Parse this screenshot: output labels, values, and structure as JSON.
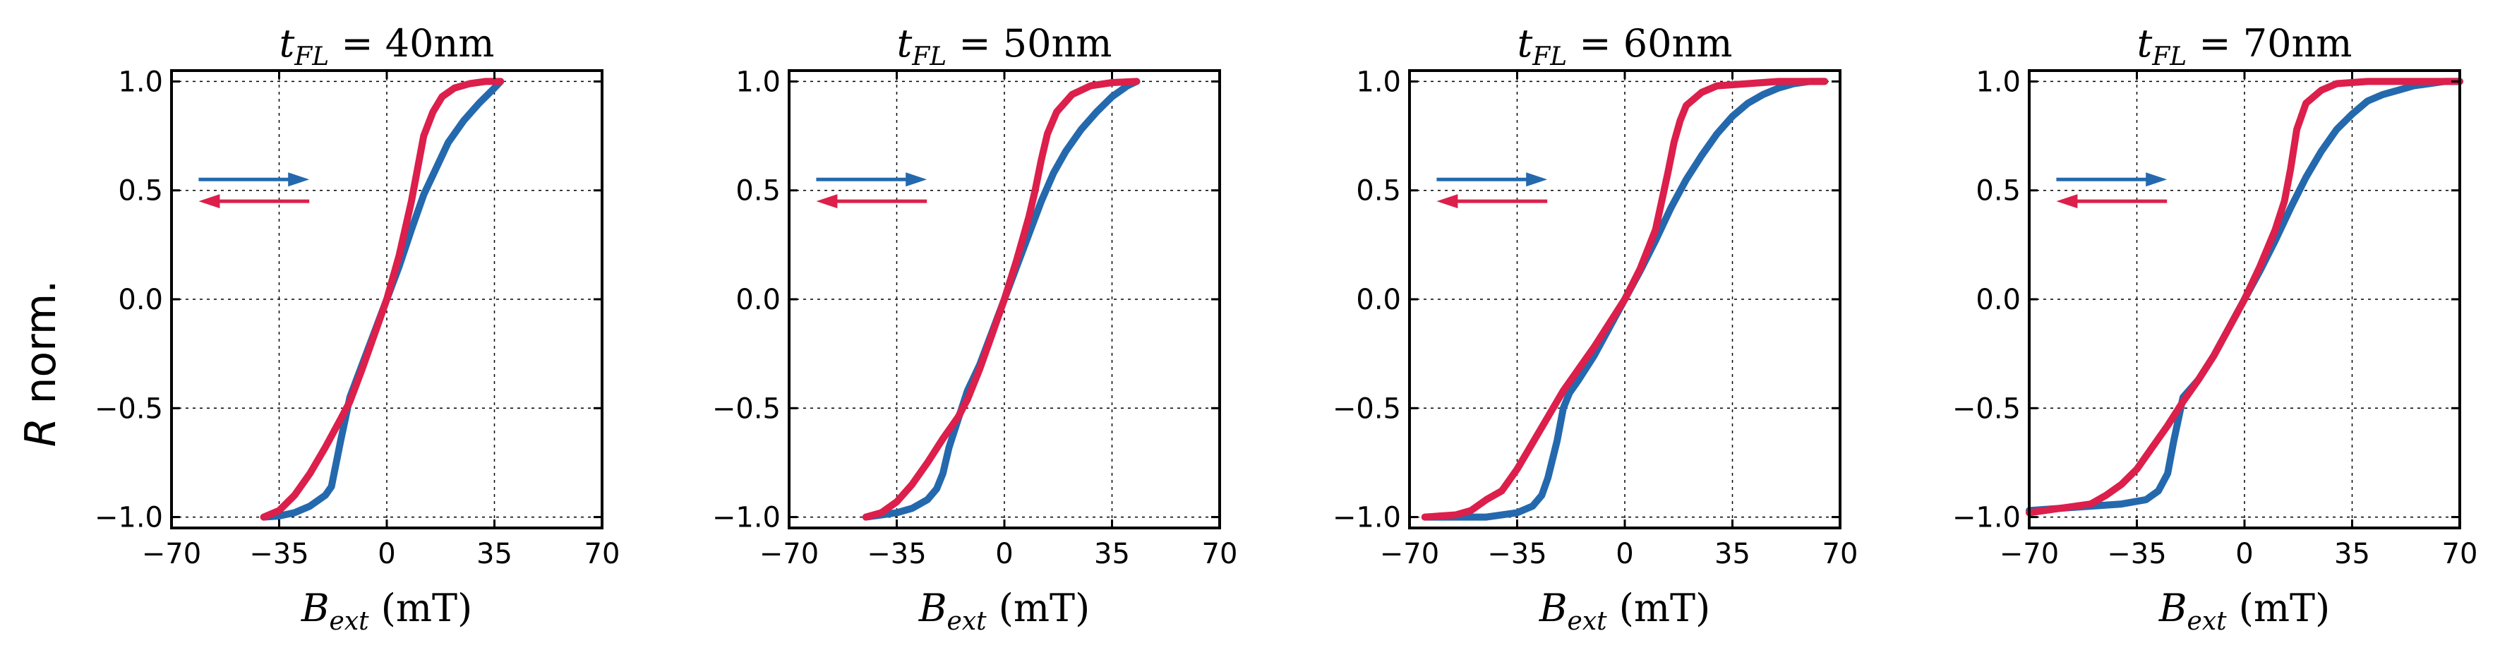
{
  "figure": {
    "ylabel": "R",
    "ylabel_suffix": " norm."
  },
  "chart_data": [
    {
      "type": "line",
      "title_var": "t",
      "title_sub": "FL",
      "title_value": "= 40nm",
      "xlabel_var": "B",
      "xlabel_sub": "ext",
      "xlabel_unit": " (mT)",
      "xlim": [
        -70,
        70
      ],
      "ylim": [
        -1.05,
        1.05
      ],
      "xticks": [
        -70,
        -35,
        0,
        35,
        70
      ],
      "xtick_labels": [
        "−70",
        "−35",
        "0",
        "35",
        "70"
      ],
      "yticks": [
        -1.0,
        -0.5,
        0.0,
        0.5,
        1.0
      ],
      "ytick_labels": [
        "−1.0",
        "−0.5",
        "0.0",
        "0.5",
        "1.0"
      ],
      "grid": true,
      "series": [
        {
          "name": "sweep up",
          "color": "#2469ad",
          "x": [
            -40,
            -35,
            -30,
            -25,
            -20,
            -18,
            -15,
            -12,
            -8,
            -4,
            0,
            4,
            8,
            12,
            16,
            20,
            25,
            30,
            35,
            37
          ],
          "y": [
            -1.0,
            -0.995,
            -0.98,
            -0.95,
            -0.9,
            -0.86,
            -0.65,
            -0.45,
            -0.3,
            -0.15,
            0.0,
            0.15,
            0.32,
            0.48,
            0.6,
            0.72,
            0.82,
            0.9,
            0.97,
            1.0
          ]
        },
        {
          "name": "sweep down",
          "color": "#dc1f4b",
          "x": [
            -40,
            -35,
            -30,
            -25,
            -20,
            -15,
            -12,
            -8,
            -4,
            0,
            4,
            8,
            10,
            12,
            15,
            18,
            22,
            27,
            32,
            37
          ],
          "y": [
            -1.0,
            -0.97,
            -0.9,
            -0.8,
            -0.68,
            -0.55,
            -0.47,
            -0.32,
            -0.16,
            0.0,
            0.2,
            0.45,
            0.6,
            0.75,
            0.86,
            0.93,
            0.97,
            0.99,
            1.0,
            1.0
          ]
        }
      ],
      "arrows": [
        {
          "direction": "right",
          "color": "#2469ad"
        },
        {
          "direction": "left",
          "color": "#dc1f4b"
        }
      ]
    },
    {
      "type": "line",
      "title_var": "t",
      "title_sub": "FL",
      "title_value": "= 50nm",
      "xlabel_var": "B",
      "xlabel_sub": "ext",
      "xlabel_unit": " (mT)",
      "xlim": [
        -70,
        70
      ],
      "ylim": [
        -1.05,
        1.05
      ],
      "xticks": [
        -70,
        -35,
        0,
        35,
        70
      ],
      "xtick_labels": [
        "−70",
        "−35",
        "0",
        "35",
        "70"
      ],
      "yticks": [
        -1.0,
        -0.5,
        0.0,
        0.5,
        1.0
      ],
      "ytick_labels": [
        "−1.0",
        "−0.5",
        "0.0",
        "0.5",
        "1.0"
      ],
      "grid": true,
      "series": [
        {
          "name": "sweep up",
          "color": "#2469ad",
          "x": [
            -45,
            -40,
            -35,
            -30,
            -25,
            -22,
            -20,
            -18,
            -15,
            -12,
            -8,
            -4,
            0,
            4,
            8,
            12,
            16,
            20,
            25,
            30,
            35,
            40,
            43
          ],
          "y": [
            -1.0,
            -0.99,
            -0.98,
            -0.96,
            -0.92,
            -0.87,
            -0.8,
            -0.68,
            -0.55,
            -0.42,
            -0.3,
            -0.15,
            0.0,
            0.15,
            0.3,
            0.45,
            0.58,
            0.68,
            0.78,
            0.86,
            0.93,
            0.98,
            1.0
          ]
        },
        {
          "name": "sweep down",
          "color": "#dc1f4b",
          "x": [
            -45,
            -40,
            -35,
            -30,
            -25,
            -20,
            -15,
            -12,
            -8,
            -4,
            0,
            4,
            8,
            10,
            12,
            14,
            17,
            22,
            28,
            35,
            43
          ],
          "y": [
            -1.0,
            -0.98,
            -0.93,
            -0.85,
            -0.75,
            -0.64,
            -0.54,
            -0.46,
            -0.32,
            -0.16,
            0.0,
            0.18,
            0.38,
            0.5,
            0.64,
            0.76,
            0.86,
            0.94,
            0.98,
            0.995,
            1.0
          ]
        }
      ],
      "arrows": [
        {
          "direction": "right",
          "color": "#2469ad"
        },
        {
          "direction": "left",
          "color": "#dc1f4b"
        }
      ]
    },
    {
      "type": "line",
      "title_var": "t",
      "title_sub": "FL",
      "title_value": "= 60nm",
      "xlabel_var": "B",
      "xlabel_sub": "ext",
      "xlabel_unit": " (mT)",
      "xlim": [
        -70,
        70
      ],
      "ylim": [
        -1.05,
        1.05
      ],
      "xticks": [
        -70,
        -35,
        0,
        35,
        70
      ],
      "xtick_labels": [
        "−70",
        "−35",
        "0",
        "35",
        "70"
      ],
      "yticks": [
        -1.0,
        -0.5,
        0.0,
        0.5,
        1.0
      ],
      "ytick_labels": [
        "−1.0",
        "−0.5",
        "0.0",
        "0.5",
        "1.0"
      ],
      "grid": true,
      "series": [
        {
          "name": "sweep up",
          "color": "#2469ad",
          "x": [
            -65,
            -55,
            -45,
            -35,
            -30,
            -27,
            -25,
            -22,
            -20,
            -18,
            -15,
            -10,
            -5,
            0,
            5,
            10,
            15,
            20,
            25,
            30,
            35,
            40,
            45,
            50,
            55,
            60,
            65
          ],
          "y": [
            -1.0,
            -1.0,
            -1.0,
            -0.98,
            -0.95,
            -0.9,
            -0.82,
            -0.65,
            -0.5,
            -0.43,
            -0.37,
            -0.26,
            -0.13,
            0.0,
            0.13,
            0.27,
            0.42,
            0.55,
            0.66,
            0.76,
            0.84,
            0.9,
            0.94,
            0.97,
            0.99,
            1.0,
            1.0
          ]
        },
        {
          "name": "sweep down",
          "color": "#dc1f4b",
          "x": [
            -65,
            -55,
            -50,
            -45,
            -40,
            -35,
            -30,
            -25,
            -20,
            -15,
            -10,
            -5,
            0,
            5,
            10,
            12,
            14,
            16,
            18,
            20,
            25,
            30,
            40,
            50,
            65
          ],
          "y": [
            -1.0,
            -0.99,
            -0.97,
            -0.92,
            -0.88,
            -0.78,
            -0.66,
            -0.54,
            -0.42,
            -0.32,
            -0.22,
            -0.11,
            0.0,
            0.14,
            0.32,
            0.45,
            0.58,
            0.72,
            0.82,
            0.89,
            0.95,
            0.98,
            0.99,
            1.0,
            1.0
          ]
        }
      ],
      "arrows": [
        {
          "direction": "right",
          "color": "#2469ad"
        },
        {
          "direction": "left",
          "color": "#dc1f4b"
        }
      ]
    },
    {
      "type": "line",
      "title_var": "t",
      "title_sub": "FL",
      "title_value": "= 70nm",
      "xlabel_var": "B",
      "xlabel_sub": "ext",
      "xlabel_unit": " (mT)",
      "xlim": [
        -70,
        70
      ],
      "ylim": [
        -1.05,
        1.05
      ],
      "xticks": [
        -70,
        -35,
        0,
        35,
        70
      ],
      "xtick_labels": [
        "−70",
        "−35",
        "0",
        "35",
        "70"
      ],
      "yticks": [
        -1.0,
        -0.5,
        0.0,
        0.5,
        1.0
      ],
      "ytick_labels": [
        "−1.0",
        "−0.5",
        "0.0",
        "0.5",
        "1.0"
      ],
      "grid": true,
      "series": [
        {
          "name": "sweep up",
          "color": "#2469ad",
          "x": [
            -70,
            -60,
            -50,
            -40,
            -32,
            -28,
            -25,
            -23,
            -20,
            -15,
            -10,
            -5,
            0,
            5,
            10,
            15,
            20,
            25,
            30,
            35,
            40,
            45,
            50,
            55,
            60,
            65,
            70
          ],
          "y": [
            -0.97,
            -0.96,
            -0.95,
            -0.94,
            -0.92,
            -0.88,
            -0.8,
            -0.65,
            -0.45,
            -0.37,
            -0.26,
            -0.13,
            0.0,
            0.13,
            0.27,
            0.42,
            0.56,
            0.68,
            0.78,
            0.85,
            0.91,
            0.94,
            0.96,
            0.98,
            0.99,
            1.0,
            1.0
          ]
        },
        {
          "name": "sweep down",
          "color": "#dc1f4b",
          "x": [
            -70,
            -60,
            -50,
            -45,
            -40,
            -35,
            -30,
            -25,
            -20,
            -15,
            -10,
            -5,
            0,
            5,
            10,
            13,
            15,
            17,
            20,
            25,
            30,
            40,
            55,
            70
          ],
          "y": [
            -0.98,
            -0.96,
            -0.94,
            -0.9,
            -0.85,
            -0.78,
            -0.68,
            -0.58,
            -0.47,
            -0.37,
            -0.26,
            -0.13,
            0.0,
            0.15,
            0.32,
            0.45,
            0.6,
            0.78,
            0.9,
            0.96,
            0.99,
            1.0,
            1.0,
            1.0
          ]
        }
      ],
      "arrows": [
        {
          "direction": "right",
          "color": "#2469ad"
        },
        {
          "direction": "left",
          "color": "#dc1f4b"
        }
      ]
    }
  ]
}
